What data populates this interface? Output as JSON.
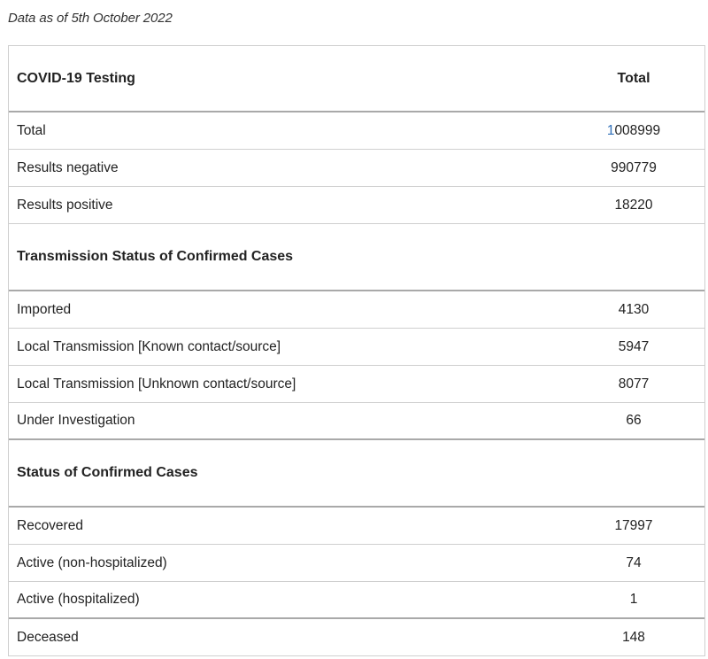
{
  "caption": "Data as of 5th October 2022",
  "header": {
    "label": "COVID-19 Testing",
    "value": "Total"
  },
  "testing": [
    {
      "label": "Total",
      "value_first_char": "1",
      "value_rest": "008999"
    },
    {
      "label": "Results negative",
      "value": "990779"
    },
    {
      "label": "Results positive",
      "value": "18220"
    }
  ],
  "transmission_header": "Transmission Status of Confirmed Cases",
  "transmission": [
    {
      "label": "Imported",
      "value": "4130"
    },
    {
      "label": "Local Transmission [Known contact/source]",
      "value": "5947"
    },
    {
      "label": "Local Transmission [Unknown contact/source]",
      "value": "8077"
    },
    {
      "label": "Under Investigation",
      "value": "66"
    }
  ],
  "status_header": "Status of Confirmed Cases",
  "status": [
    {
      "label": "Recovered",
      "value": "17997"
    },
    {
      "label": "Active (non-hospitalized)",
      "value": "74"
    },
    {
      "label": "Active (hospitalized)",
      "value": "1"
    },
    {
      "label": "Deceased",
      "value": "148"
    }
  ],
  "colors": {
    "accent_digit": "#2f6fb8",
    "border": "#cfcfcf",
    "border_strong": "#a9a9a9"
  }
}
